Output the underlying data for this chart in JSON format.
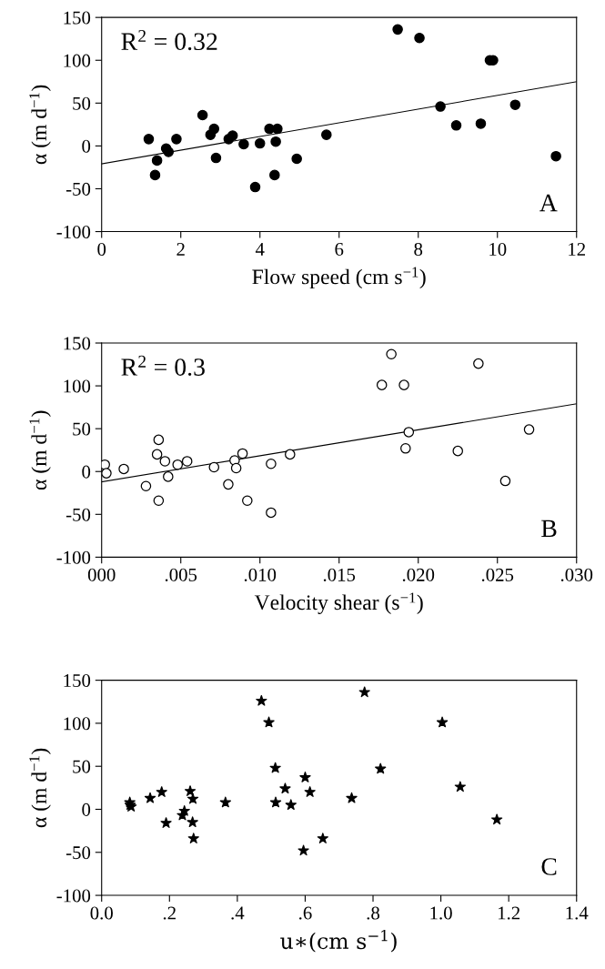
{
  "chart_data": [
    {
      "type": "scatter",
      "xlabel": "Flow speed (cm s$^{−1}$)",
      "ylabel": "α (m d$^{−1}$)",
      "annotations": [
        "R$^{2}$ = 0.32",
        "A"
      ],
      "xlim": [
        0,
        12
      ],
      "xticks": [
        0,
        2,
        4,
        6,
        8,
        10,
        12
      ],
      "ylim": [
        -100,
        150
      ],
      "yticks": [
        -100,
        -50,
        0,
        50,
        100,
        150
      ],
      "grid": false,
      "legend": false,
      "series": [
        {
          "marker": "circle",
          "color": "#000000",
          "x": [
            1.19,
            1.4,
            1.35,
            1.63,
            1.69,
            1.89,
            2.55,
            2.75,
            2.84,
            2.89,
            3.21,
            3.31,
            3.59,
            4.0,
            3.88,
            4.24,
            4.44,
            4.4,
            4.37,
            4.93,
            5.68,
            7.48,
            8.03,
            8.56,
            8.96,
            9.58,
            9.81,
            9.89,
            10.45,
            11.48
          ],
          "values": [
            8,
            -17,
            -34,
            -3,
            -7,
            8,
            36,
            13,
            20,
            -14,
            8,
            12,
            2,
            3,
            -48,
            20,
            20,
            5,
            -34,
            -15,
            13,
            136,
            126,
            46,
            24,
            26,
            100,
            100,
            48,
            -12
          ]
        },
        {
          "type": "line",
          "marker": "none",
          "color": "#000000",
          "x": [
            0,
            12
          ],
          "values": [
            -21,
            75
          ]
        }
      ]
    },
    {
      "type": "scatter",
      "xlabel": "Velocity shear (s$^{−1}$)",
      "ylabel": "α (m d$^{−1}$)",
      "annotations": [
        "R$^{2}$ = 0.3",
        "B"
      ],
      "xlim": [
        0,
        0.03
      ],
      "xticks": [
        {
          "value": 0,
          "label": "000"
        },
        {
          "value": 0.005,
          "label": ".005"
        },
        {
          "value": 0.01,
          "label": ".010"
        },
        {
          "value": 0.015,
          "label": ".015"
        },
        {
          "value": 0.02,
          "label": ".020"
        },
        {
          "value": 0.025,
          "label": ".025"
        },
        {
          "value": 0.03,
          "label": ".030"
        }
      ],
      "ylim": [
        -100,
        150
      ],
      "yticks": [
        -100,
        -50,
        0,
        50,
        100,
        150
      ],
      "grid": false,
      "legend": false,
      "series": [
        {
          "marker": "circle",
          "color": "#ffffff",
          "x": [
            0.0002,
            0.0003,
            0.0014,
            0.0028,
            0.0036,
            0.0035,
            0.0036,
            0.004,
            0.0042,
            0.0048,
            0.0054,
            0.0071,
            0.008,
            0.0084,
            0.0085,
            0.0089,
            0.0092,
            0.0107,
            0.0107,
            0.0119,
            0.0177,
            0.0183,
            0.0191,
            0.0194,
            0.0192,
            0.0225,
            0.0238,
            0.0255,
            0.027
          ],
          "values": [
            8,
            -2,
            3,
            -17,
            37,
            20,
            -34,
            12,
            -6,
            8,
            12,
            5,
            -15,
            13,
            4,
            21,
            -34,
            9,
            -48,
            20,
            101,
            137,
            101,
            46,
            27,
            24,
            126,
            -11,
            49
          ]
        },
        {
          "type": "line",
          "marker": "none",
          "color": "#000000",
          "x": [
            0,
            0.03
          ],
          "values": [
            -12,
            79
          ]
        }
      ]
    },
    {
      "type": "scatter",
      "xlabel": "u∗(cm s$^{−1}$)",
      "ylabel": "α (m d$^{−1}$)",
      "annotations": [
        "C"
      ],
      "xlim": [
        0,
        1.4
      ],
      "xticks": [
        {
          "value": 0,
          "label": "0.0"
        },
        {
          "value": 0.2,
          "label": ".2"
        },
        {
          "value": 0.4,
          "label": ".4"
        },
        {
          "value": 0.6,
          "label": ".6"
        },
        {
          "value": 0.8,
          "label": ".8"
        },
        {
          "value": 1.0,
          "label": "1.0"
        },
        {
          "value": 1.2,
          "label": "1.2"
        },
        {
          "value": 1.4,
          "label": "1.4"
        }
      ],
      "ylim": [
        -100,
        150
      ],
      "yticks": [
        -100,
        -50,
        0,
        50,
        100,
        150
      ],
      "grid": false,
      "legend": false,
      "series": [
        {
          "marker": "star",
          "color": "#000000",
          "x": [
            0.083,
            0.087,
            0.084,
            0.143,
            0.177,
            0.19,
            0.238,
            0.244,
            0.261,
            0.269,
            0.268,
            0.271,
            0.365,
            0.471,
            0.493,
            0.512,
            0.513,
            0.541,
            0.558,
            0.6,
            0.595,
            0.614,
            0.652,
            0.737,
            0.775,
            0.822,
            1.004,
            1.057,
            1.165
          ],
          "values": [
            8,
            3,
            5,
            13,
            20,
            -16,
            -7,
            -2,
            21,
            12,
            -15,
            -34,
            8,
            126,
            101,
            48,
            8,
            24,
            5,
            37,
            -48,
            20,
            -34,
            13,
            136,
            47,
            101,
            26,
            -12
          ]
        }
      ]
    }
  ]
}
